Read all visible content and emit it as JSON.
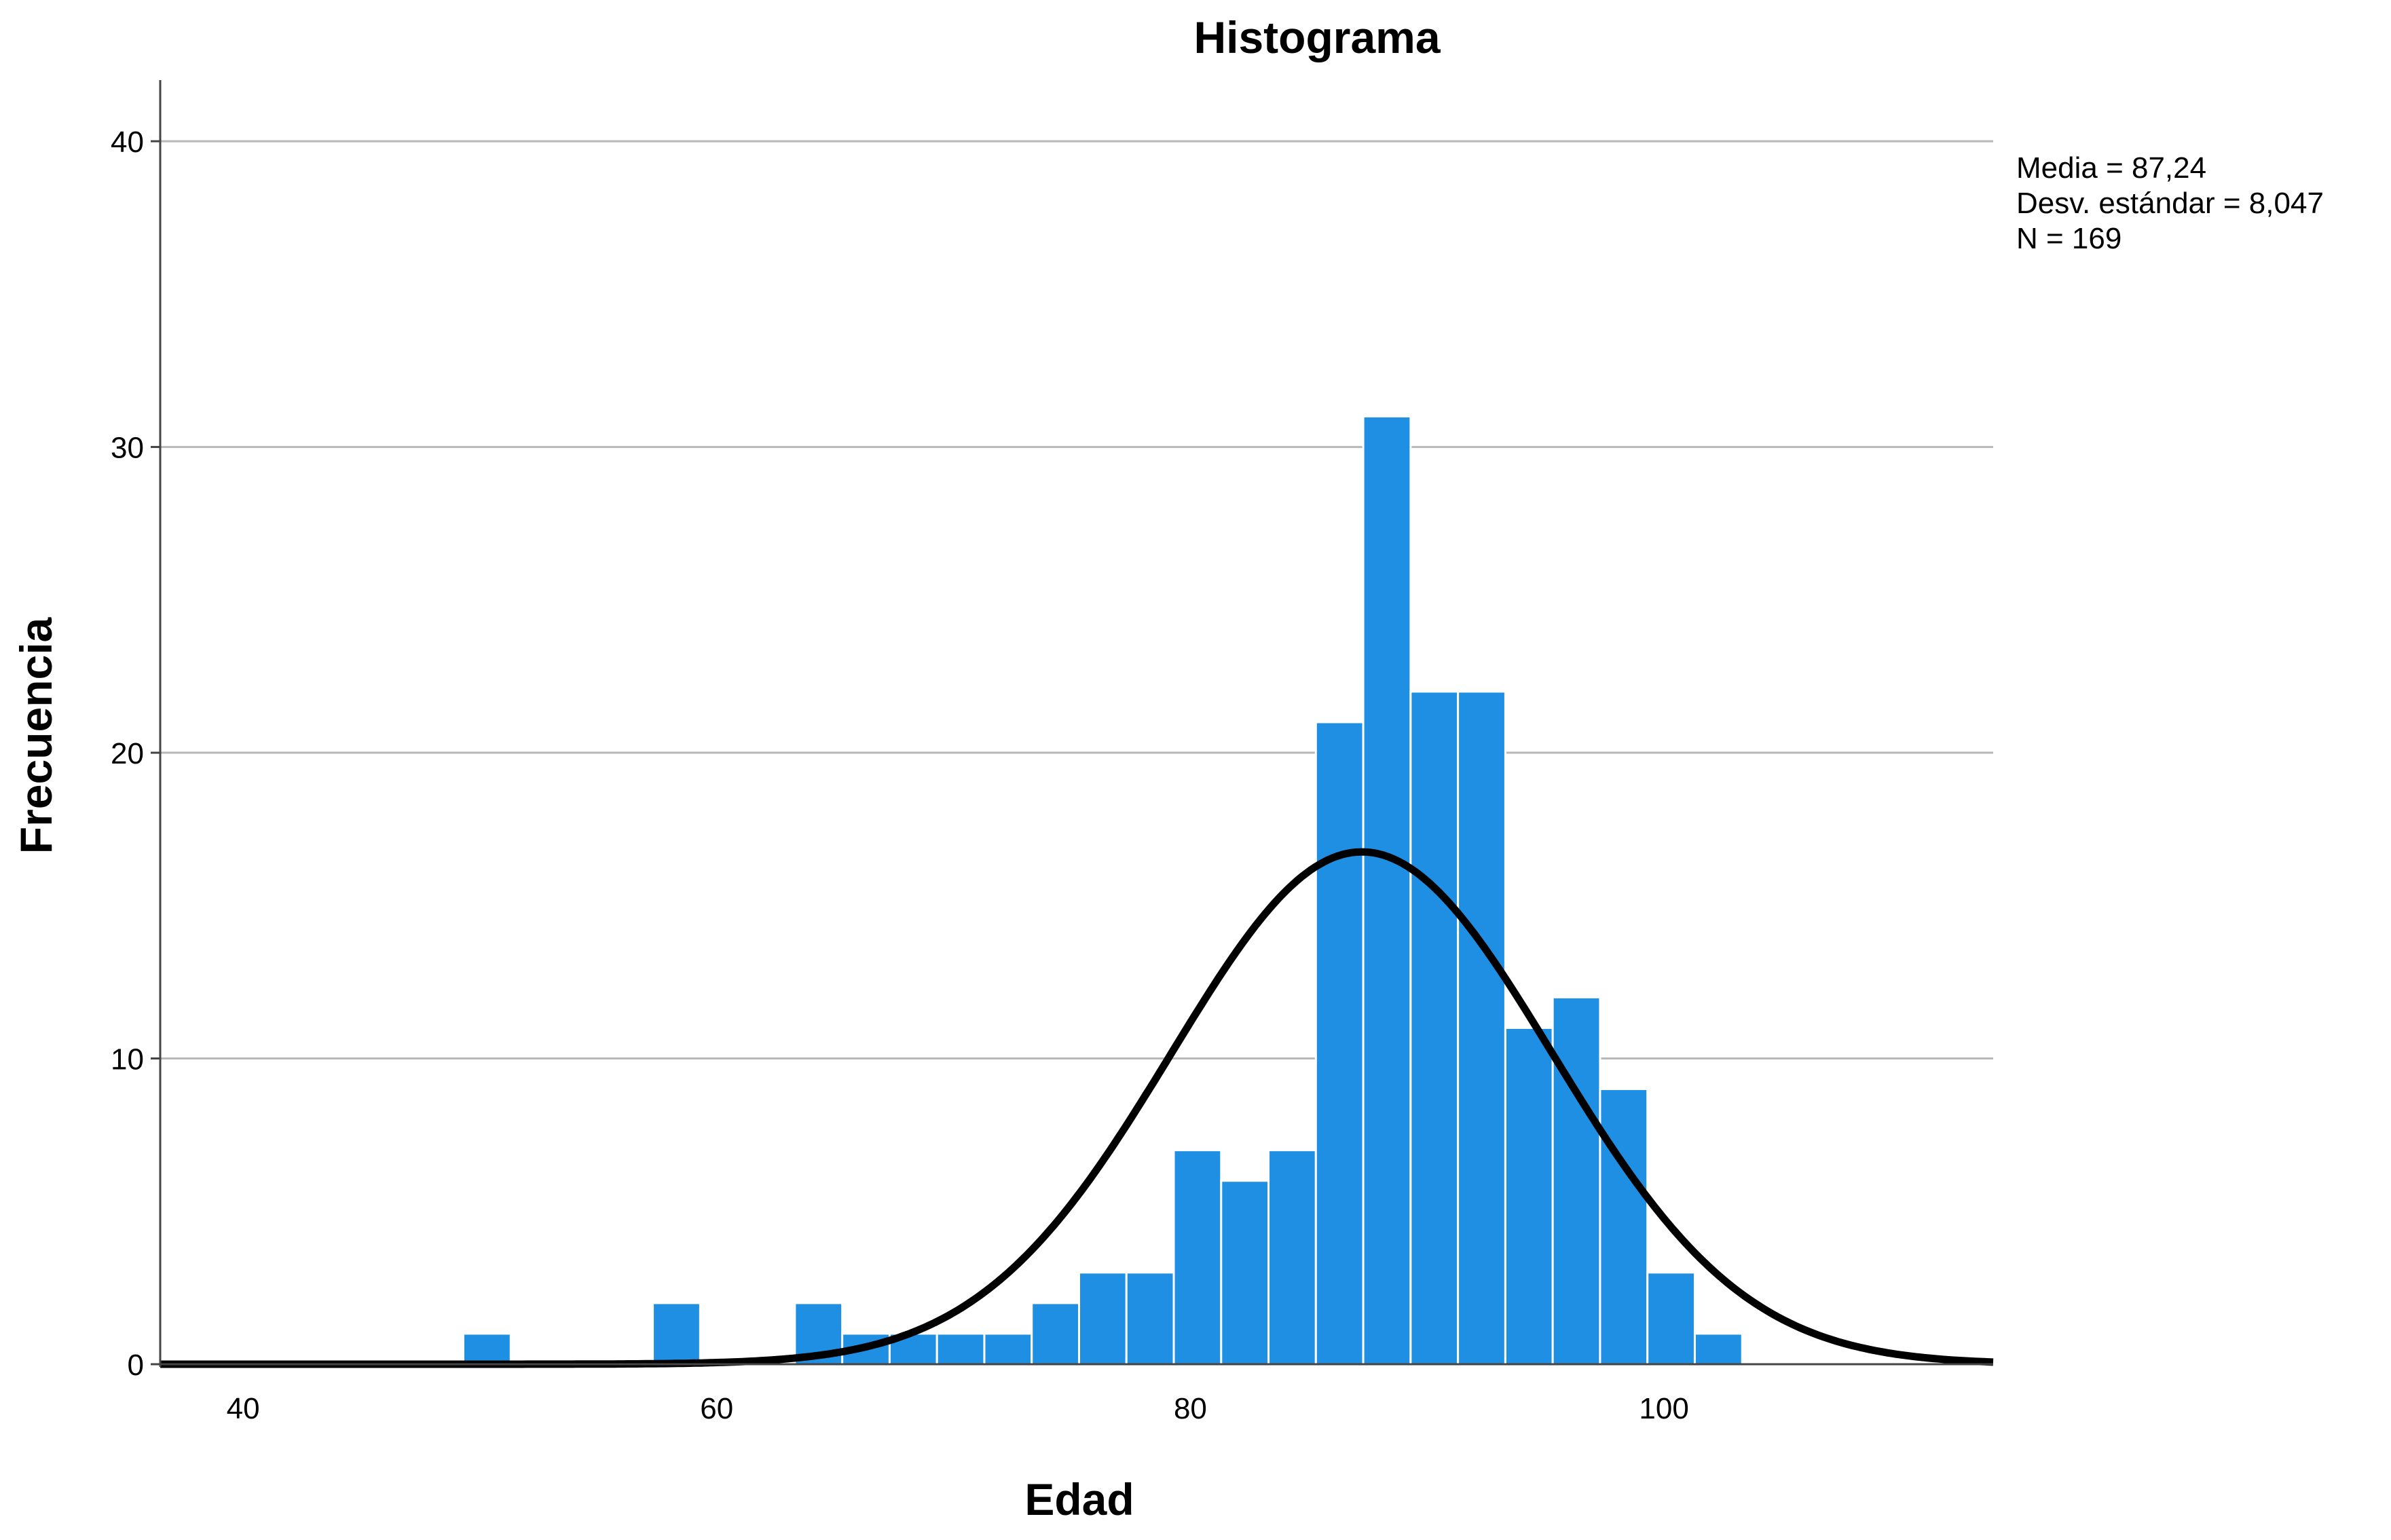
{
  "chart_data": {
    "type": "bar",
    "title": "Histograma",
    "xlabel": "Edad",
    "ylabel": "Frecuencia",
    "xlim": [
      36.5,
      113.9
    ],
    "ylim": [
      0,
      42
    ],
    "x_ticks": [
      40,
      60,
      80,
      100
    ],
    "y_ticks": [
      0,
      10,
      20,
      30,
      40
    ],
    "grid": "horizontal",
    "bar_color": "#1f8fe3",
    "bar_edge_color": "#ffffff",
    "curve_color": "#000000",
    "bin_width": 2,
    "bins": [
      {
        "start": 49.3,
        "count": 1
      },
      {
        "start": 57.3,
        "count": 2
      },
      {
        "start": 63.3,
        "count": 2
      },
      {
        "start": 65.3,
        "count": 1
      },
      {
        "start": 67.3,
        "count": 1
      },
      {
        "start": 69.3,
        "count": 1
      },
      {
        "start": 71.3,
        "count": 1
      },
      {
        "start": 73.3,
        "count": 2
      },
      {
        "start": 75.3,
        "count": 3
      },
      {
        "start": 77.3,
        "count": 3
      },
      {
        "start": 79.3,
        "count": 7
      },
      {
        "start": 81.3,
        "count": 6
      },
      {
        "start": 83.3,
        "count": 7
      },
      {
        "start": 85.3,
        "count": 21
      },
      {
        "start": 87.3,
        "count": 31
      },
      {
        "start": 89.3,
        "count": 22
      },
      {
        "start": 91.3,
        "count": 22
      },
      {
        "start": 93.3,
        "count": 11
      },
      {
        "start": 95.3,
        "count": 12
      },
      {
        "start": 97.3,
        "count": 9
      },
      {
        "start": 99.3,
        "count": 3
      },
      {
        "start": 101.3,
        "count": 1
      }
    ],
    "normal_curve": {
      "mean": 87.24,
      "sd": 8.047,
      "n": 169
    },
    "stats": {
      "mean": "Media = 87,24",
      "sd": "Desv. estándar = 8,047",
      "n": "N = 169"
    }
  }
}
